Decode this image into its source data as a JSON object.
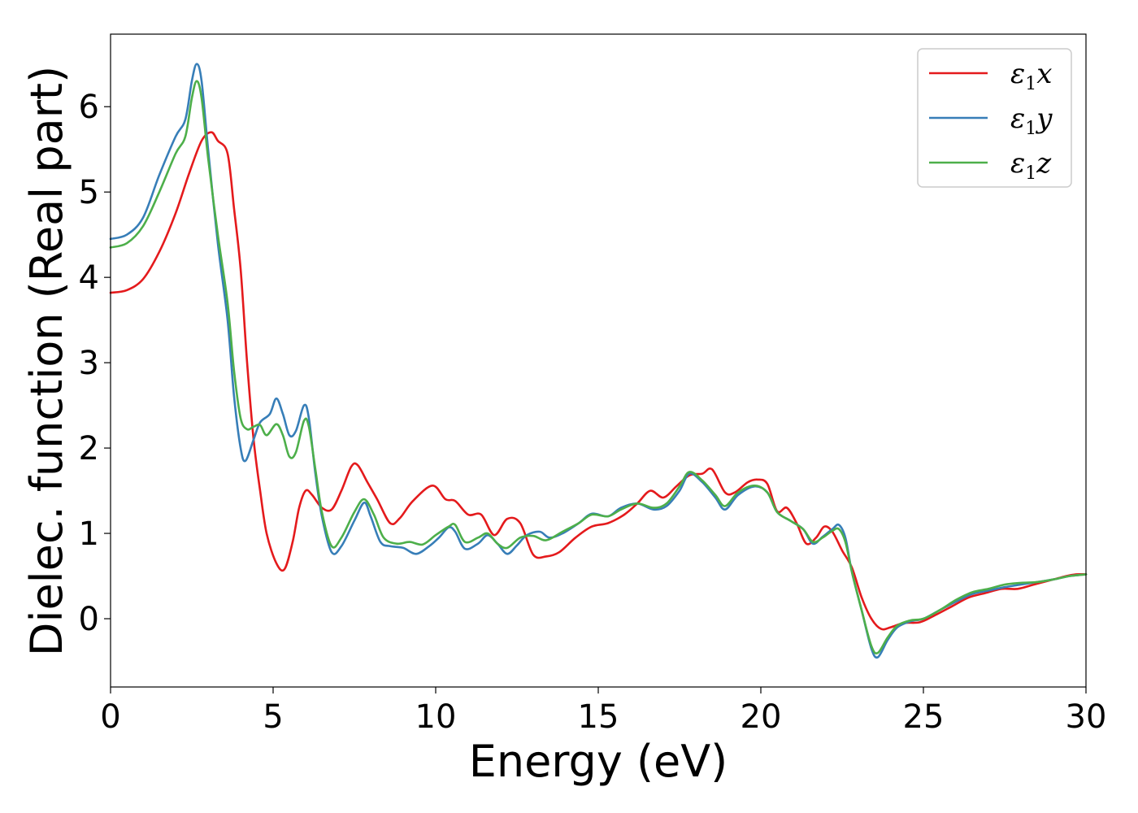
{
  "chart_data": {
    "type": "line",
    "title": "",
    "xlabel": "Energy (eV)",
    "ylabel": "Dielec. function (Real part)",
    "xlim": [
      0,
      30
    ],
    "ylim": [
      -0.8,
      6.85
    ],
    "xticks": [
      0,
      5,
      10,
      15,
      20,
      25,
      30
    ],
    "xtick_labels": [
      "0",
      "5",
      "10",
      "15",
      "20",
      "25",
      "30"
    ],
    "yticks": [
      0,
      1,
      2,
      3,
      4,
      5,
      6
    ],
    "ytick_labels": [
      "0",
      "1",
      "2",
      "3",
      "4",
      "5",
      "6"
    ],
    "grid": false,
    "legend_position": "top-right",
    "series": [
      {
        "name": "ε1x",
        "legend_main": "ε",
        "legend_sub": "1",
        "legend_tail": "x",
        "color": "#e41a1c",
        "points": [
          [
            0,
            3.82
          ],
          [
            0.5,
            3.85
          ],
          [
            1,
            3.98
          ],
          [
            1.5,
            4.3
          ],
          [
            2,
            4.75
          ],
          [
            2.4,
            5.2
          ],
          [
            2.8,
            5.6
          ],
          [
            3.1,
            5.7
          ],
          [
            3.3,
            5.6
          ],
          [
            3.6,
            5.45
          ],
          [
            3.8,
            4.8
          ],
          [
            4.0,
            4.1
          ],
          [
            4.2,
            3.0
          ],
          [
            4.4,
            2.1
          ],
          [
            4.6,
            1.5
          ],
          [
            4.8,
            1.0
          ],
          [
            5.1,
            0.65
          ],
          [
            5.35,
            0.58
          ],
          [
            5.6,
            0.9
          ],
          [
            5.8,
            1.3
          ],
          [
            6.0,
            1.5
          ],
          [
            6.2,
            1.45
          ],
          [
            6.5,
            1.3
          ],
          [
            6.8,
            1.28
          ],
          [
            7.1,
            1.5
          ],
          [
            7.4,
            1.78
          ],
          [
            7.6,
            1.8
          ],
          [
            7.9,
            1.6
          ],
          [
            8.2,
            1.4
          ],
          [
            8.6,
            1.12
          ],
          [
            8.9,
            1.18
          ],
          [
            9.3,
            1.38
          ],
          [
            9.9,
            1.56
          ],
          [
            10.3,
            1.4
          ],
          [
            10.6,
            1.38
          ],
          [
            11.0,
            1.22
          ],
          [
            11.4,
            1.22
          ],
          [
            11.8,
            0.98
          ],
          [
            12.2,
            1.17
          ],
          [
            12.6,
            1.12
          ],
          [
            13.0,
            0.75
          ],
          [
            13.4,
            0.73
          ],
          [
            13.8,
            0.78
          ],
          [
            14.3,
            0.95
          ],
          [
            14.8,
            1.08
          ],
          [
            15.3,
            1.12
          ],
          [
            15.8,
            1.22
          ],
          [
            16.2,
            1.35
          ],
          [
            16.6,
            1.5
          ],
          [
            17.0,
            1.42
          ],
          [
            17.4,
            1.55
          ],
          [
            17.8,
            1.68
          ],
          [
            18.2,
            1.7
          ],
          [
            18.5,
            1.75
          ],
          [
            18.9,
            1.48
          ],
          [
            19.2,
            1.48
          ],
          [
            19.6,
            1.6
          ],
          [
            19.9,
            1.63
          ],
          [
            20.2,
            1.58
          ],
          [
            20.5,
            1.26
          ],
          [
            20.8,
            1.3
          ],
          [
            21.1,
            1.12
          ],
          [
            21.4,
            0.88
          ],
          [
            21.7,
            0.95
          ],
          [
            21.95,
            1.08
          ],
          [
            22.2,
            1.02
          ],
          [
            22.5,
            0.8
          ],
          [
            22.8,
            0.6
          ],
          [
            23.1,
            0.25
          ],
          [
            23.4,
            0.0
          ],
          [
            23.7,
            -0.12
          ],
          [
            24.0,
            -0.1
          ],
          [
            24.4,
            -0.05
          ],
          [
            24.9,
            -0.04
          ],
          [
            25.4,
            0.05
          ],
          [
            25.9,
            0.15
          ],
          [
            26.4,
            0.25
          ],
          [
            26.9,
            0.3
          ],
          [
            27.4,
            0.35
          ],
          [
            27.9,
            0.35
          ],
          [
            28.4,
            0.4
          ],
          [
            28.9,
            0.45
          ],
          [
            29.4,
            0.5
          ],
          [
            29.7,
            0.52
          ],
          [
            30,
            0.52
          ]
        ]
      },
      {
        "name": "ε1y",
        "legend_main": "ε",
        "legend_sub": "1",
        "legend_tail": "y",
        "color": "#377eb8",
        "points": [
          [
            0,
            4.45
          ],
          [
            0.5,
            4.5
          ],
          [
            1,
            4.7
          ],
          [
            1.5,
            5.2
          ],
          [
            2.0,
            5.65
          ],
          [
            2.3,
            5.85
          ],
          [
            2.5,
            6.3
          ],
          [
            2.65,
            6.5
          ],
          [
            2.8,
            6.3
          ],
          [
            3.0,
            5.5
          ],
          [
            3.3,
            4.4
          ],
          [
            3.6,
            3.5
          ],
          [
            3.8,
            2.6
          ],
          [
            4.0,
            2.0
          ],
          [
            4.15,
            1.85
          ],
          [
            4.4,
            2.1
          ],
          [
            4.6,
            2.3
          ],
          [
            4.9,
            2.4
          ],
          [
            5.1,
            2.58
          ],
          [
            5.3,
            2.4
          ],
          [
            5.5,
            2.15
          ],
          [
            5.7,
            2.2
          ],
          [
            5.95,
            2.5
          ],
          [
            6.1,
            2.35
          ],
          [
            6.3,
            1.7
          ],
          [
            6.5,
            1.2
          ],
          [
            6.8,
            0.78
          ],
          [
            7.1,
            0.85
          ],
          [
            7.5,
            1.15
          ],
          [
            7.8,
            1.36
          ],
          [
            8.0,
            1.2
          ],
          [
            8.3,
            0.9
          ],
          [
            8.6,
            0.85
          ],
          [
            9.0,
            0.83
          ],
          [
            9.4,
            0.76
          ],
          [
            9.8,
            0.85
          ],
          [
            10.1,
            0.95
          ],
          [
            10.4,
            1.07
          ],
          [
            10.6,
            1.02
          ],
          [
            10.9,
            0.82
          ],
          [
            11.3,
            0.88
          ],
          [
            11.6,
            0.98
          ],
          [
            11.9,
            0.88
          ],
          [
            12.2,
            0.76
          ],
          [
            12.5,
            0.86
          ],
          [
            12.8,
            0.98
          ],
          [
            13.2,
            1.02
          ],
          [
            13.5,
            0.95
          ],
          [
            13.9,
            1.0
          ],
          [
            14.4,
            1.12
          ],
          [
            14.8,
            1.23
          ],
          [
            15.3,
            1.2
          ],
          [
            15.7,
            1.3
          ],
          [
            16.2,
            1.35
          ],
          [
            16.7,
            1.28
          ],
          [
            17.1,
            1.32
          ],
          [
            17.5,
            1.5
          ],
          [
            17.8,
            1.7
          ],
          [
            18.2,
            1.6
          ],
          [
            18.6,
            1.42
          ],
          [
            18.9,
            1.28
          ],
          [
            19.3,
            1.45
          ],
          [
            19.8,
            1.55
          ],
          [
            20.2,
            1.48
          ],
          [
            20.5,
            1.25
          ],
          [
            20.9,
            1.15
          ],
          [
            21.3,
            1.05
          ],
          [
            21.6,
            0.88
          ],
          [
            21.9,
            0.96
          ],
          [
            22.2,
            1.05
          ],
          [
            22.4,
            1.1
          ],
          [
            22.6,
            0.95
          ],
          [
            22.8,
            0.55
          ],
          [
            23.1,
            0.1
          ],
          [
            23.4,
            -0.35
          ],
          [
            23.6,
            -0.45
          ],
          [
            23.9,
            -0.25
          ],
          [
            24.2,
            -0.1
          ],
          [
            24.6,
            -0.03
          ],
          [
            25.0,
            0.0
          ],
          [
            25.5,
            0.1
          ],
          [
            26.0,
            0.2
          ],
          [
            26.5,
            0.29
          ],
          [
            27.0,
            0.33
          ],
          [
            27.5,
            0.37
          ],
          [
            28.0,
            0.4
          ],
          [
            28.5,
            0.43
          ],
          [
            29.0,
            0.46
          ],
          [
            29.5,
            0.5
          ],
          [
            30,
            0.52
          ]
        ]
      },
      {
        "name": "ε1z",
        "legend_main": "ε",
        "legend_sub": "1",
        "legend_tail": "z",
        "color": "#4daf4a",
        "points": [
          [
            0,
            4.35
          ],
          [
            0.5,
            4.4
          ],
          [
            1,
            4.6
          ],
          [
            1.5,
            5.0
          ],
          [
            2.0,
            5.45
          ],
          [
            2.3,
            5.65
          ],
          [
            2.5,
            6.1
          ],
          [
            2.65,
            6.3
          ],
          [
            2.8,
            6.1
          ],
          [
            3.0,
            5.4
          ],
          [
            3.3,
            4.5
          ],
          [
            3.6,
            3.7
          ],
          [
            3.8,
            2.9
          ],
          [
            4.0,
            2.35
          ],
          [
            4.2,
            2.22
          ],
          [
            4.4,
            2.25
          ],
          [
            4.6,
            2.27
          ],
          [
            4.8,
            2.15
          ],
          [
            5.1,
            2.28
          ],
          [
            5.3,
            2.15
          ],
          [
            5.5,
            1.9
          ],
          [
            5.7,
            1.95
          ],
          [
            5.95,
            2.32
          ],
          [
            6.1,
            2.25
          ],
          [
            6.3,
            1.75
          ],
          [
            6.5,
            1.25
          ],
          [
            6.8,
            0.85
          ],
          [
            7.1,
            0.95
          ],
          [
            7.5,
            1.25
          ],
          [
            7.8,
            1.4
          ],
          [
            8.1,
            1.22
          ],
          [
            8.4,
            0.95
          ],
          [
            8.8,
            0.88
          ],
          [
            9.2,
            0.9
          ],
          [
            9.6,
            0.87
          ],
          [
            10.0,
            0.98
          ],
          [
            10.4,
            1.08
          ],
          [
            10.6,
            1.1
          ],
          [
            10.9,
            0.9
          ],
          [
            11.3,
            0.95
          ],
          [
            11.6,
            1.0
          ],
          [
            11.9,
            0.88
          ],
          [
            12.2,
            0.83
          ],
          [
            12.6,
            0.95
          ],
          [
            13.0,
            0.97
          ],
          [
            13.4,
            0.92
          ],
          [
            13.9,
            1.02
          ],
          [
            14.4,
            1.12
          ],
          [
            14.8,
            1.22
          ],
          [
            15.3,
            1.2
          ],
          [
            15.7,
            1.28
          ],
          [
            16.2,
            1.35
          ],
          [
            16.7,
            1.3
          ],
          [
            17.1,
            1.35
          ],
          [
            17.5,
            1.55
          ],
          [
            17.8,
            1.72
          ],
          [
            18.2,
            1.62
          ],
          [
            18.6,
            1.45
          ],
          [
            18.9,
            1.32
          ],
          [
            19.3,
            1.48
          ],
          [
            19.8,
            1.56
          ],
          [
            20.2,
            1.48
          ],
          [
            20.5,
            1.25
          ],
          [
            20.9,
            1.15
          ],
          [
            21.3,
            1.05
          ],
          [
            21.6,
            0.9
          ],
          [
            21.9,
            0.95
          ],
          [
            22.2,
            1.03
          ],
          [
            22.4,
            1.05
          ],
          [
            22.6,
            0.9
          ],
          [
            22.8,
            0.55
          ],
          [
            23.1,
            0.1
          ],
          [
            23.4,
            -0.32
          ],
          [
            23.6,
            -0.4
          ],
          [
            23.9,
            -0.22
          ],
          [
            24.2,
            -0.08
          ],
          [
            24.6,
            -0.02
          ],
          [
            25.0,
            0.0
          ],
          [
            25.5,
            0.1
          ],
          [
            26.0,
            0.22
          ],
          [
            26.5,
            0.31
          ],
          [
            27.0,
            0.35
          ],
          [
            27.5,
            0.4
          ],
          [
            28.0,
            0.42
          ],
          [
            28.5,
            0.43
          ],
          [
            29.0,
            0.46
          ],
          [
            29.5,
            0.5
          ],
          [
            30,
            0.52
          ]
        ]
      }
    ]
  }
}
